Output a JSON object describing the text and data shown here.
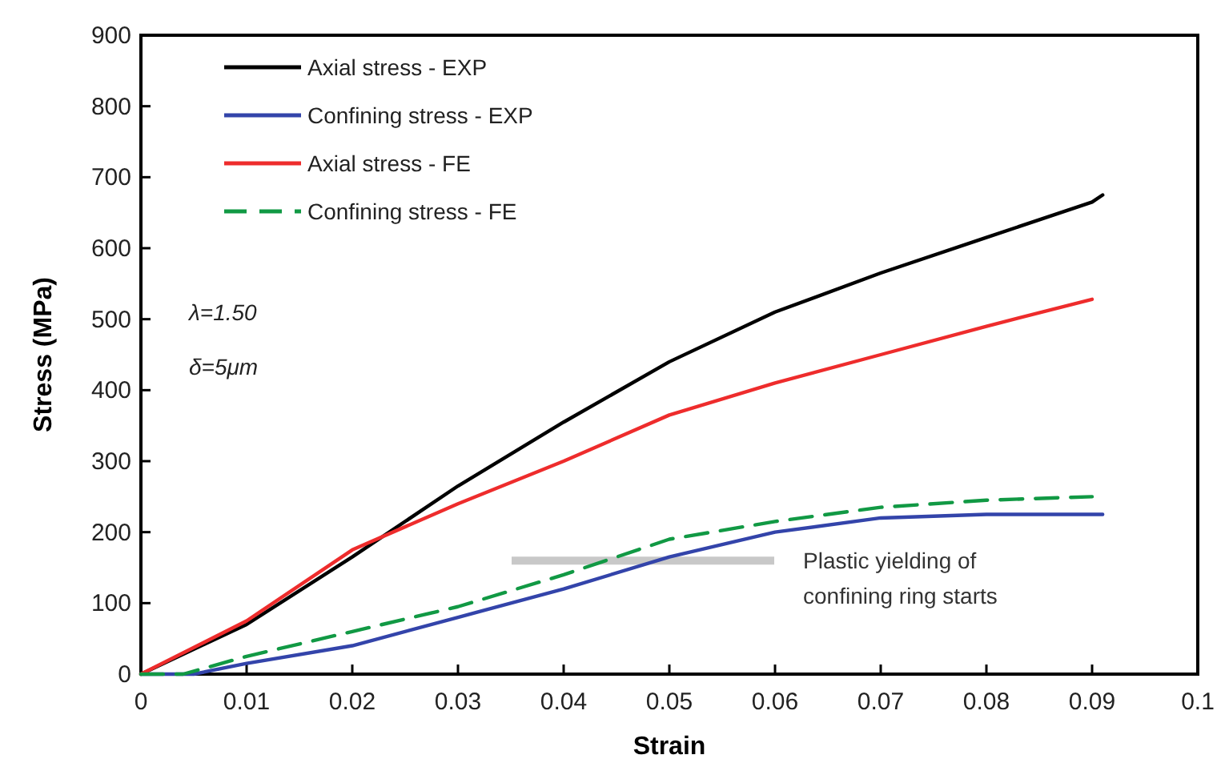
{
  "chart_data": {
    "type": "line",
    "xlabel": "Strain",
    "ylabel": "Stress (MPa)",
    "xlim": [
      0,
      0.1
    ],
    "ylim": [
      0,
      900
    ],
    "xticks": [
      0,
      0.01,
      0.02,
      0.03,
      0.04,
      0.05,
      0.06,
      0.07,
      0.08,
      0.09,
      0.1
    ],
    "yticks": [
      0,
      100,
      200,
      300,
      400,
      500,
      600,
      700,
      800,
      900
    ],
    "legend": "top left",
    "grid": false,
    "series": [
      {
        "name": "Axial stress - EXP",
        "color": "#000000",
        "line_style": "solid",
        "x": [
          0,
          0.01,
          0.02,
          0.03,
          0.04,
          0.05,
          0.06,
          0.07,
          0.08,
          0.09,
          0.091
        ],
        "values": [
          0,
          70,
          165,
          265,
          355,
          440,
          510,
          565,
          615,
          665,
          675
        ]
      },
      {
        "name": "Confining stress - EXP",
        "color": "#3344aa",
        "line_style": "solid",
        "x": [
          0,
          0.005,
          0.01,
          0.02,
          0.03,
          0.04,
          0.05,
          0.06,
          0.07,
          0.08,
          0.091
        ],
        "values": [
          0,
          0,
          15,
          40,
          80,
          120,
          165,
          200,
          220,
          225,
          225
        ]
      },
      {
        "name": "Axial stress - FE",
        "color": "#ee2c2c",
        "line_style": "solid",
        "x": [
          0,
          0.01,
          0.02,
          0.03,
          0.04,
          0.05,
          0.06,
          0.07,
          0.08,
          0.09
        ],
        "values": [
          0,
          75,
          175,
          240,
          300,
          365,
          410,
          450,
          490,
          528
        ]
      },
      {
        "name": "Confining stress - FE",
        "color": "#119944",
        "line_style": "dashed",
        "x": [
          0,
          0.004,
          0.01,
          0.02,
          0.03,
          0.04,
          0.05,
          0.06,
          0.07,
          0.08,
          0.09
        ],
        "values": [
          0,
          0,
          25,
          60,
          95,
          140,
          190,
          215,
          235,
          245,
          250
        ]
      }
    ],
    "annotations": [
      "λ=1.50",
      "δ=5μm",
      "Plastic yielding of confining ring starts"
    ]
  }
}
